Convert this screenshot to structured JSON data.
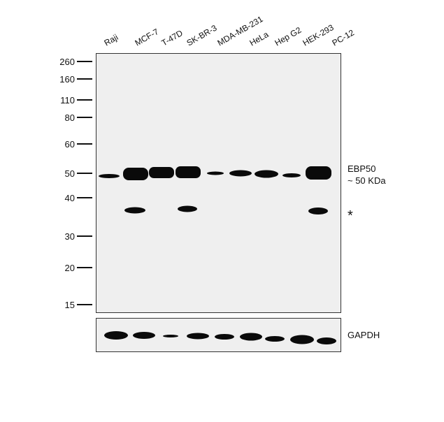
{
  "lanes": [
    "Raji",
    "MCF-7",
    "T-47D",
    "SK-BR-3",
    "MDA-MB-231",
    "HeLa",
    "Hep G2",
    "HEK-293",
    "PC-12"
  ],
  "markers": [
    "260",
    "160",
    "110",
    "80",
    "60",
    "50",
    "40",
    "30",
    "20",
    "15"
  ],
  "target": {
    "name": "EBP50",
    "size": "~ 50 KDa"
  },
  "nonspecific_mark": "*",
  "loading_control": "GAPDH"
}
